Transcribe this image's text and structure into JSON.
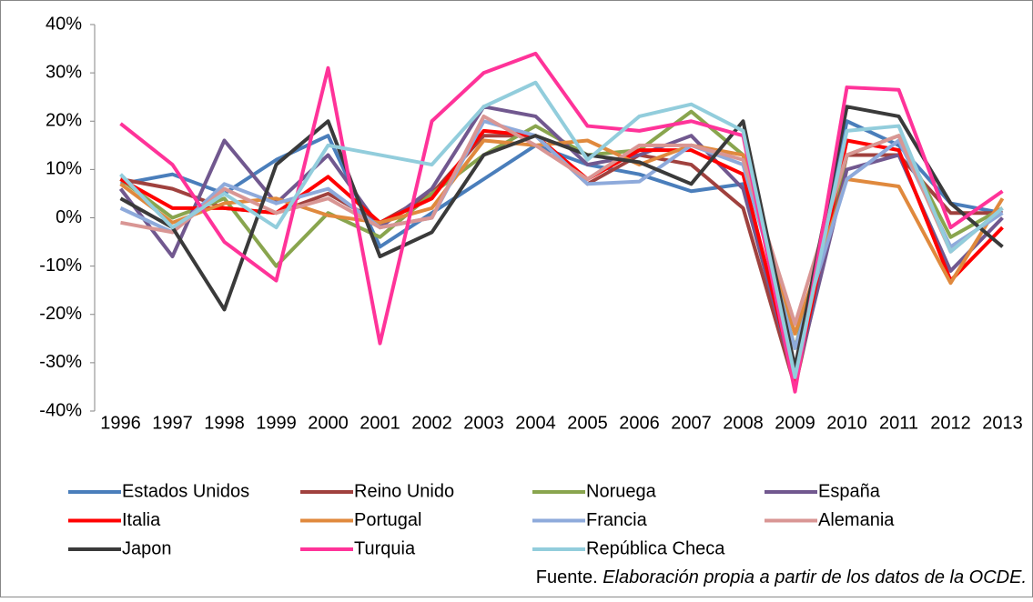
{
  "chart_data": {
    "type": "line",
    "categories": [
      "1996",
      "1997",
      "1998",
      "1999",
      "2000",
      "2001",
      "2002",
      "2003",
      "2004",
      "2005",
      "2006",
      "2007",
      "2008",
      "2009",
      "2010",
      "2011",
      "2012",
      "2013"
    ],
    "ylim": [
      -40,
      40
    ],
    "yticks": [
      {
        "value": -40,
        "label": "-40%"
      },
      {
        "value": -30,
        "label": "-30%"
      },
      {
        "value": -20,
        "label": "-20%"
      },
      {
        "value": -10,
        "label": "-10%"
      },
      {
        "value": 0,
        "label": "0%"
      },
      {
        "value": 10,
        "label": "10%"
      },
      {
        "value": 20,
        "label": "20%"
      },
      {
        "value": 30,
        "label": "30%"
      },
      {
        "value": 40,
        "label": "40%"
      }
    ],
    "grid": false,
    "series": [
      {
        "name": "Estados Unidos",
        "color": "#4a7ebb",
        "values": [
          7,
          9,
          5,
          12,
          17,
          -6,
          1,
          8,
          15,
          11,
          9,
          5.5,
          7,
          -33,
          20,
          15,
          3,
          1
        ]
      },
      {
        "name": "Reino Unido",
        "color": "#a0413e",
        "values": [
          8,
          6,
          2,
          1,
          5,
          -1,
          5,
          17,
          17,
          7,
          13,
          11,
          2,
          -35,
          13,
          13,
          1,
          1
        ]
      },
      {
        "name": "Noruega",
        "color": "#89a54e",
        "values": [
          8,
          0,
          4,
          -10,
          1,
          -4,
          5,
          13,
          19,
          13,
          14,
          22,
          13,
          -27,
          13,
          17,
          -4,
          2
        ]
      },
      {
        "name": "España",
        "color": "#71588f",
        "values": [
          6,
          -8,
          16,
          3,
          13,
          -2,
          6,
          23,
          21,
          11,
          13,
          17,
          6,
          -34,
          10,
          13,
          -11,
          0
        ]
      },
      {
        "name": "Italia",
        "color": "#ff0000",
        "values": [
          8,
          2,
          2,
          1,
          8.5,
          -1,
          4,
          18,
          17,
          8,
          14,
          14,
          9,
          -34,
          16,
          14,
          -13,
          -2
        ]
      },
      {
        "name": "Portugal",
        "color": "#e0893d",
        "values": [
          7,
          -1,
          3,
          4,
          0.5,
          -1,
          2,
          16,
          15,
          16,
          11,
          15,
          13,
          -24,
          8,
          6.5,
          -13.5,
          4
        ]
      },
      {
        "name": "Francia",
        "color": "#8eaadb",
        "values": [
          2,
          -3,
          7,
          3,
          6,
          -2,
          0,
          20,
          17,
          7,
          7.5,
          15,
          11,
          -27,
          8,
          16,
          -6,
          1
        ]
      },
      {
        "name": "Alemania",
        "color": "#d99694",
        "values": [
          -1,
          -3,
          6,
          1,
          4,
          -2,
          0,
          21,
          15,
          8,
          15,
          15,
          12,
          -22,
          13,
          17,
          -7,
          2
        ]
      },
      {
        "name": "Japon",
        "color": "#3a3a3a",
        "values": [
          4,
          -2,
          -19,
          11,
          20,
          -8,
          -3,
          13,
          17,
          13,
          11.5,
          7,
          20,
          -31,
          23,
          21,
          3,
          -6
        ]
      },
      {
        "name": "Turquia",
        "color": "#ff3399",
        "values": [
          19.5,
          11,
          -5,
          -13,
          31,
          -26,
          20,
          30,
          34,
          19,
          18,
          20,
          17,
          -36,
          27,
          26.5,
          -2,
          5.5
        ]
      },
      {
        "name": "República Checa",
        "color": "#92cddc",
        "values": [
          9,
          -2,
          5,
          -2,
          15,
          13,
          11,
          23,
          28,
          12,
          21,
          23.5,
          18,
          -33,
          18,
          19,
          -7,
          2
        ]
      }
    ],
    "source_label": "Fuente.",
    "source_text": "Elaboración propia a partir de los datos de la OCDE."
  }
}
